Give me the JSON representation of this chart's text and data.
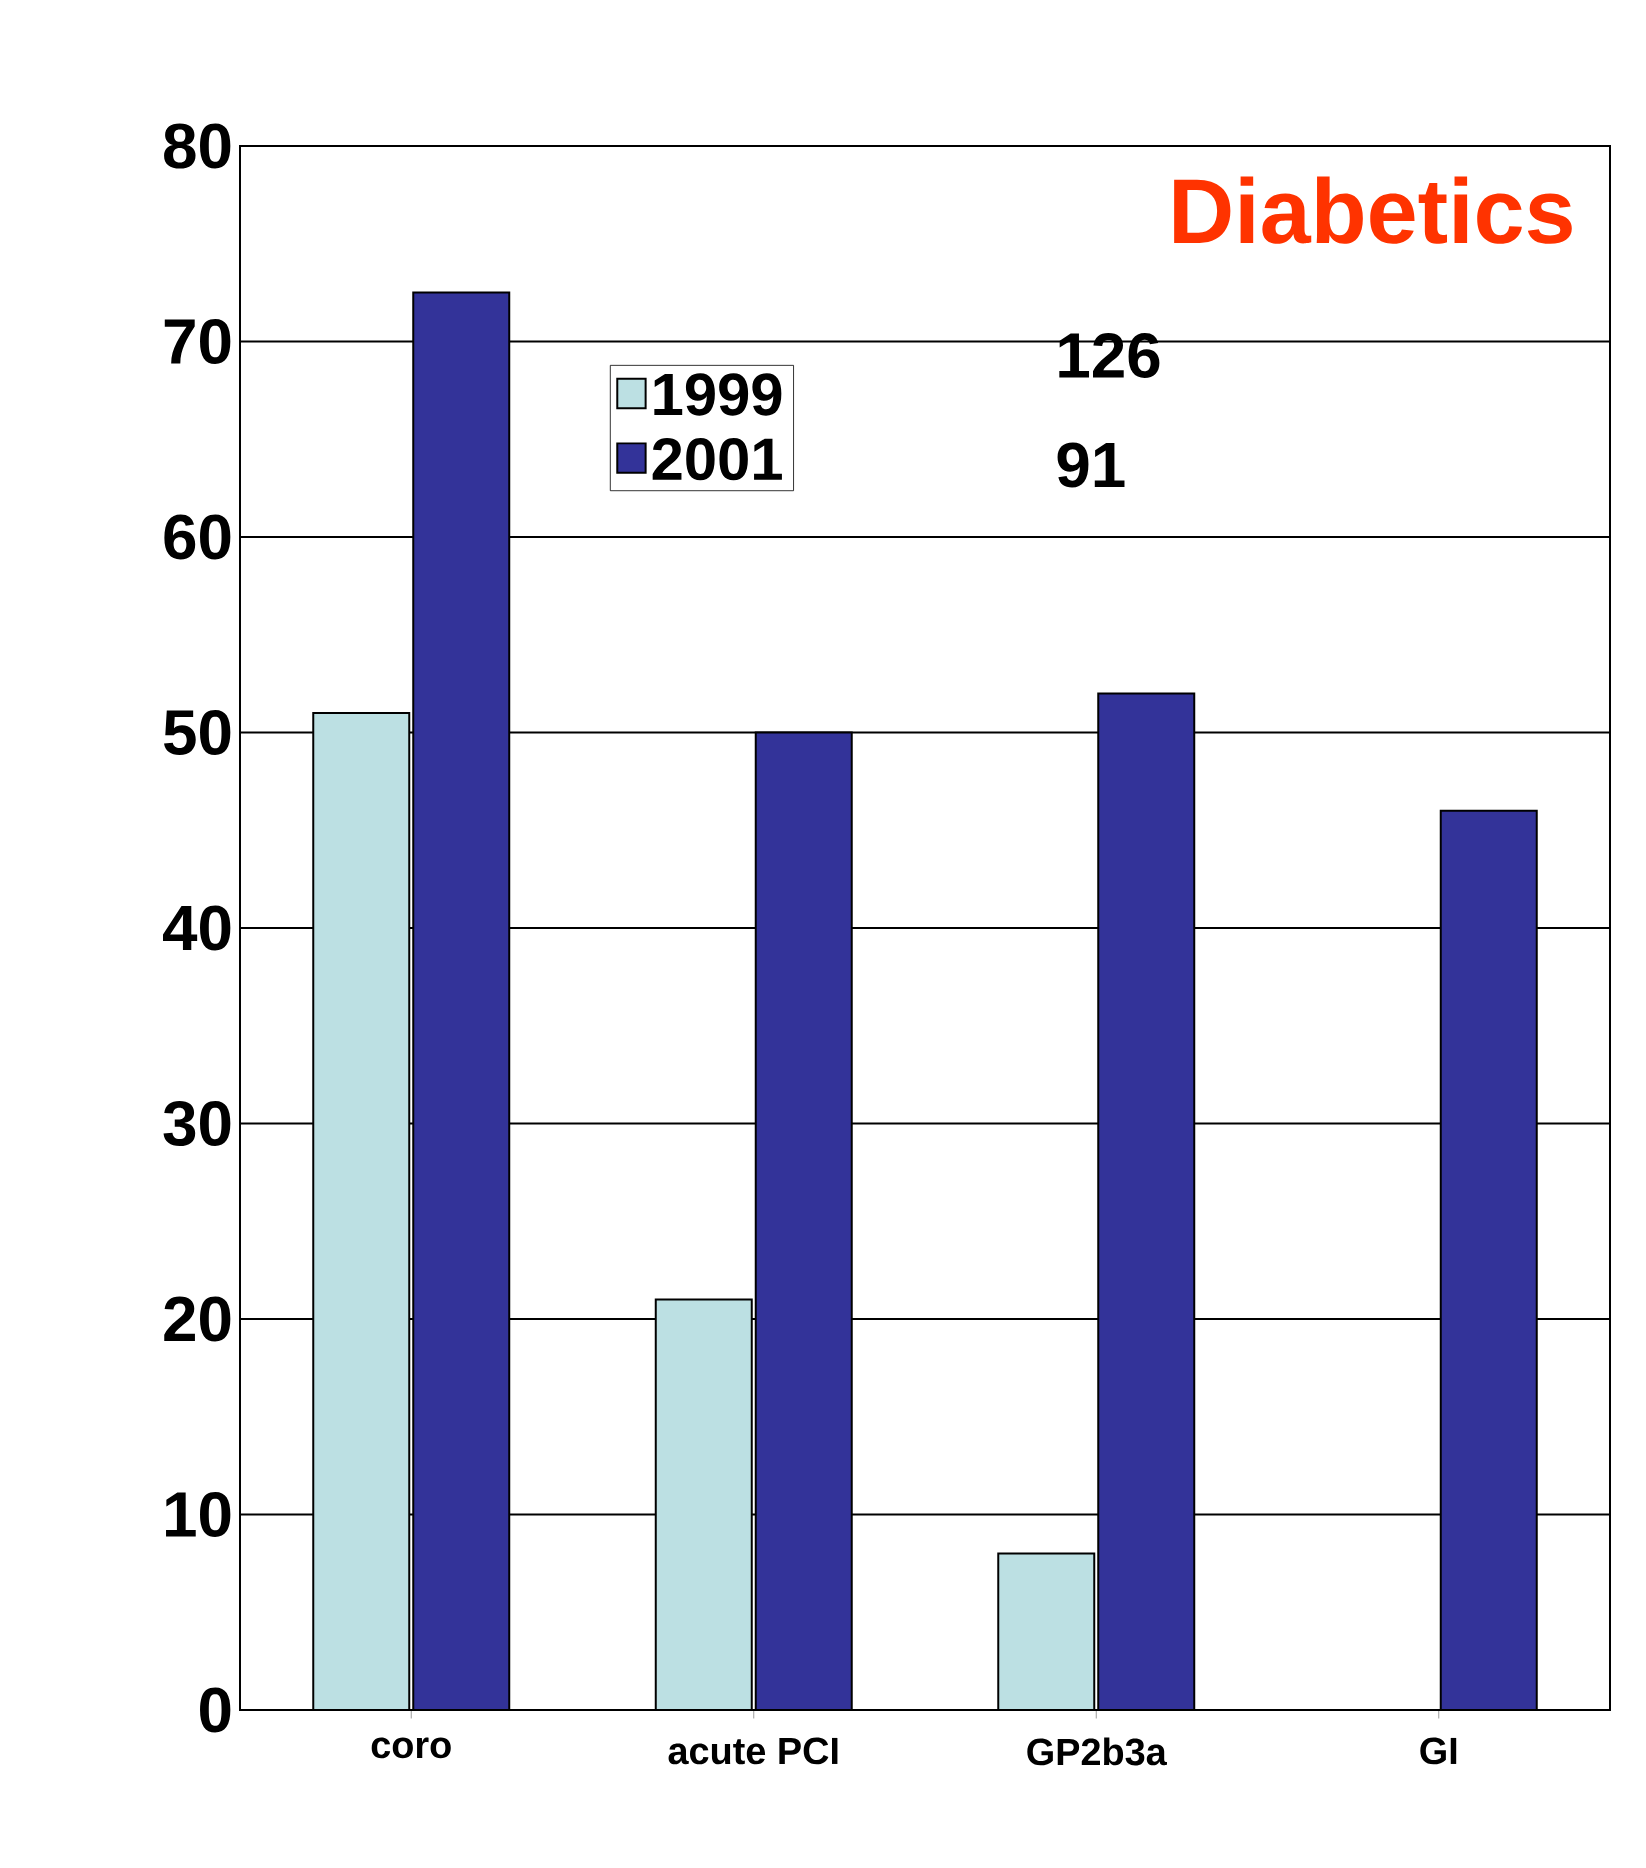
{
  "chart_data": {
    "type": "bar",
    "title": "Diabetics",
    "categories": [
      "coro",
      "acute PCI",
      "GP2b3a",
      "GI"
    ],
    "series": [
      {
        "name": "1999",
        "color": "#bce0e3",
        "values": [
          51,
          21,
          8,
          0
        ]
      },
      {
        "name": "2001",
        "color": "#333399",
        "values": [
          72.5,
          50,
          52,
          46
        ]
      }
    ],
    "annotations": [
      "126",
      "91"
    ],
    "ylim": [
      0,
      80
    ],
    "yticks": [
      0,
      10,
      20,
      30,
      40,
      50,
      60,
      70,
      80
    ],
    "grid": "y",
    "legend": "top left"
  }
}
